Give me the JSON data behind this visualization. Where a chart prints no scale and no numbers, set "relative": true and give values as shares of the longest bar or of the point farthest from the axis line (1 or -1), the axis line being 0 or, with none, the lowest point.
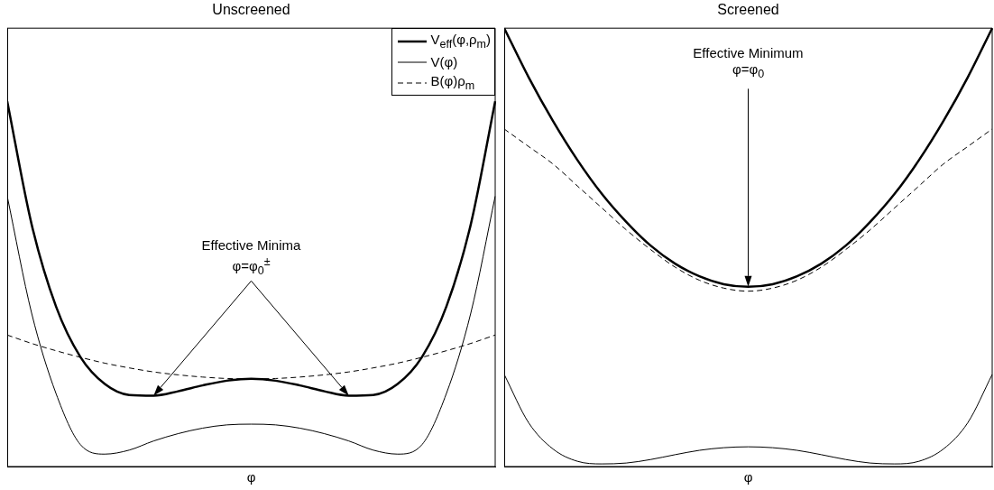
{
  "chart_data": [
    {
      "type": "line",
      "title": "Unscreened",
      "xlabel": "φ",
      "relative": true,
      "legend": "top right",
      "marker": "none",
      "categories": [
        null,
        null,
        null,
        null,
        null,
        null,
        null,
        null,
        null,
        null,
        null,
        null,
        null,
        null,
        null,
        null,
        null,
        null,
        null,
        null,
        null
      ],
      "series": [
        {
          "name": "V$_{eff}$(φ,ρ$_{m}$)",
          "color": "#000000",
          "values": [
            1.0,
            0.663,
            0.438,
            0.3,
            0.226,
            0.196,
            0.194,
            0.206,
            0.222,
            0.235,
            0.24,
            0.235,
            0.222,
            0.206,
            0.194,
            0.196,
            0.226,
            0.3,
            0.438,
            0.663,
            1.0
          ]
        },
        {
          "name": "V(φ)",
          "color": "#000000",
          "values": [
            0.74,
            0.42,
            0.2,
            0.06,
            0.034,
            0.045,
            0.07,
            0.09,
            0.105,
            0.114,
            0.116,
            0.114,
            0.105,
            0.09,
            0.07,
            0.045,
            0.034,
            0.06,
            0.2,
            0.42,
            0.74
          ]
        },
        {
          "name": "B(φ)ρ$_{m}$",
          "color": "#000000",
          "line_style": "dashed",
          "values": [
            0.36,
            0.337,
            0.317,
            0.299,
            0.283,
            0.27,
            0.259,
            0.251,
            0.245,
            0.241,
            0.24,
            0.241,
            0.245,
            0.251,
            0.259,
            0.27,
            0.283,
            0.299,
            0.317,
            0.337,
            0.36
          ]
        }
      ],
      "annotations": [
        "Effective Minima",
        "φ=φ$_{0}$$^{±}$"
      ]
    },
    {
      "type": "line",
      "title": "Screened",
      "xlabel": "φ",
      "relative": true,
      "marker": "none",
      "categories": [
        null,
        null,
        null,
        null,
        null,
        null,
        null,
        null,
        null,
        null,
        null,
        null,
        null,
        null,
        null,
        null,
        null,
        null,
        null,
        null,
        null
      ],
      "series": [
        {
          "color": "#000000",
          "values": [
            1.0,
            0.888,
            0.788,
            0.699,
            0.622,
            0.558,
            0.504,
            0.463,
            0.434,
            0.416,
            0.41,
            0.416,
            0.434,
            0.463,
            0.504,
            0.558,
            0.622,
            0.699,
            0.788,
            0.888,
            1.0
          ]
        },
        {
          "color": "#000000",
          "values": [
            0.21,
            0.1,
            0.04,
            0.012,
            0.006,
            0.008,
            0.016,
            0.027,
            0.037,
            0.043,
            0.045,
            0.043,
            0.037,
            0.027,
            0.016,
            0.008,
            0.006,
            0.012,
            0.04,
            0.1,
            0.21
          ]
        },
        {
          "color": "#000000",
          "line_style": "dashed",
          "values": [
            0.77,
            0.73,
            0.69,
            0.64,
            0.59,
            0.54,
            0.495,
            0.455,
            0.425,
            0.407,
            0.4,
            0.407,
            0.425,
            0.455,
            0.495,
            0.54,
            0.59,
            0.64,
            0.69,
            0.73,
            0.77
          ]
        }
      ],
      "annotations": [
        "Effective Minimum",
        "φ=φ$_{0}$"
      ]
    }
  ]
}
